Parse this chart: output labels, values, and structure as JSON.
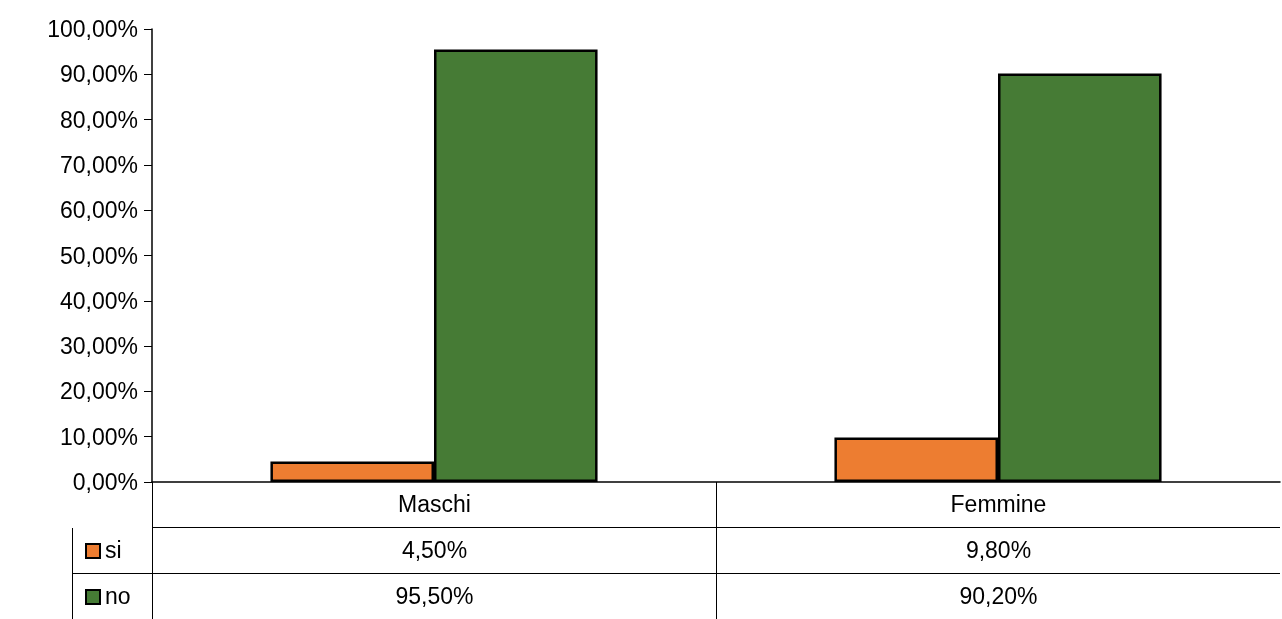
{
  "chart_data": {
    "type": "bar",
    "categories": [
      "Maschi",
      "Femmine"
    ],
    "series": [
      {
        "name": "si",
        "color": "#ed7d31",
        "values": [
          4.5,
          9.8
        ],
        "value_labels": [
          "4,50%",
          "9,80%"
        ]
      },
      {
        "name": "no",
        "color": "#467b35",
        "values": [
          95.5,
          90.2
        ],
        "value_labels": [
          "95,50%",
          "90,20%"
        ]
      }
    ],
    "ylim": [
      0,
      100
    ],
    "yticks": [
      {
        "value": 0,
        "label": "0,00%"
      },
      {
        "value": 10,
        "label": "10,00%"
      },
      {
        "value": 20,
        "label": "20,00%"
      },
      {
        "value": 30,
        "label": "30,00%"
      },
      {
        "value": 40,
        "label": "40,00%"
      },
      {
        "value": 50,
        "label": "50,00%"
      },
      {
        "value": 60,
        "label": "60,00%"
      },
      {
        "value": 70,
        "label": "70,00%"
      },
      {
        "value": 80,
        "label": "80,00%"
      },
      {
        "value": 90,
        "label": "90,00%"
      },
      {
        "value": 100,
        "label": "100,00%"
      }
    ],
    "grid": false,
    "legend": "bottom left"
  }
}
